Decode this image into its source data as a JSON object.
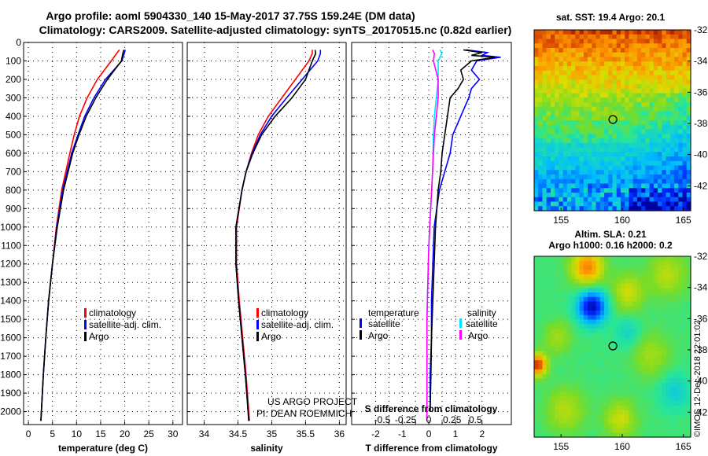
{
  "header": {
    "title_line1": "Argo profile: aoml 5904330_140 15-May-2017 37.75S 159.24E (DM data)",
    "title_line2": "Climatology: CARS2009. Satellite-adjusted climatology: synTS_20170515.nc (0.82d earlier)"
  },
  "colors": {
    "climatology": "#ff0000",
    "satellite": "#0000ff",
    "argo": "#000000",
    "satellite_s": "#00e5ff",
    "argo_s": "#ff00ff"
  },
  "depth_ticks": [
    "0",
    "100",
    "200",
    "300",
    "400",
    "500",
    "600",
    "700",
    "800",
    "900",
    "1000",
    "1100",
    "1200",
    "1300",
    "1400",
    "1500",
    "1600",
    "1700",
    "1800",
    "1900",
    "2000"
  ],
  "chart_data": [
    {
      "type": "line",
      "xlabel": "temperature (deg C)",
      "x_ticks": [
        "0",
        "5",
        "10",
        "15",
        "20",
        "25",
        "30"
      ],
      "xlim": [
        -1,
        32
      ],
      "ylim": [
        2070,
        0
      ],
      "legend": [
        "climatology",
        "satellite-adj. clim.",
        "Argo"
      ],
      "series": [
        {
          "name": "climatology",
          "depth": [
            40,
            60,
            100,
            200,
            300,
            400,
            500,
            600,
            800,
            1000,
            1200,
            1400,
            1600,
            1800,
            2000,
            2050
          ],
          "values": [
            18.9,
            18.3,
            17.2,
            14.3,
            12.2,
            10.6,
            9.5,
            8.6,
            6.9,
            5.8,
            5.0,
            4.2,
            3.6,
            3.1,
            2.7,
            2.6
          ]
        },
        {
          "name": "satellite-adj. clim.",
          "depth": [
            40,
            60,
            100,
            200,
            300,
            400,
            500,
            600,
            800,
            1000,
            1200,
            1400,
            1600,
            1800,
            2000,
            2050
          ],
          "values": [
            20.1,
            19.9,
            19.4,
            16.0,
            13.6,
            11.7,
            10.3,
            9.0,
            7.1,
            5.9,
            5.0,
            4.2,
            3.6,
            3.1,
            2.7,
            2.6
          ]
        },
        {
          "name": "Argo",
          "depth": [
            40,
            60,
            100,
            200,
            300,
            400,
            500,
            600,
            800,
            1000,
            1200,
            1400,
            1600,
            1800,
            2000,
            2050
          ],
          "values": [
            19.8,
            19.6,
            19.3,
            16.4,
            14.0,
            12.0,
            10.5,
            9.2,
            7.3,
            6.0,
            5.0,
            4.2,
            3.6,
            3.1,
            2.7,
            2.6
          ]
        }
      ]
    },
    {
      "type": "line",
      "xlabel": "salinity",
      "x_ticks": [
        "34",
        "34.5",
        "35",
        "35.5",
        "36"
      ],
      "xlim": [
        33.75,
        36.1
      ],
      "ylim": [
        2070,
        0
      ],
      "legend": [
        "climatology",
        "satellite-adj. clim.",
        "Argo"
      ],
      "series": [
        {
          "name": "climatology",
          "depth": [
            40,
            60,
            100,
            200,
            300,
            400,
            500,
            600,
            700,
            800,
            1000,
            1200,
            1400,
            1600,
            1800,
            2000,
            2050
          ],
          "values": [
            35.6,
            35.6,
            35.55,
            35.35,
            35.15,
            34.95,
            34.8,
            34.7,
            34.62,
            34.56,
            34.48,
            34.48,
            34.52,
            34.57,
            34.62,
            34.66,
            34.67
          ]
        },
        {
          "name": "satellite-adj. clim.",
          "depth": [
            40,
            60,
            100,
            200,
            300,
            400,
            500,
            600,
            700,
            800,
            1000,
            1200,
            1400,
            1600,
            1800,
            2000,
            2050
          ],
          "values": [
            35.72,
            35.72,
            35.68,
            35.45,
            35.22,
            35.0,
            34.83,
            34.71,
            34.62,
            34.56,
            34.47,
            34.47,
            34.51,
            34.56,
            34.61,
            34.65,
            34.66
          ]
        },
        {
          "name": "Argo",
          "depth": [
            40,
            60,
            100,
            200,
            300,
            400,
            500,
            600,
            700,
            800,
            1000,
            1200,
            1400,
            1600,
            1800,
            2000,
            2050
          ],
          "values": [
            35.64,
            35.65,
            35.6,
            35.5,
            35.3,
            35.05,
            34.85,
            34.72,
            34.62,
            34.56,
            34.47,
            34.47,
            34.51,
            34.56,
            34.61,
            34.65,
            34.66
          ]
        }
      ]
    },
    {
      "type": "line",
      "xlabel": "T difference from climatology",
      "x2label": "S difference from climatology",
      "x_ticks": [
        "-2",
        "-1.5",
        "-1",
        "-0.5",
        "0",
        "0.5",
        "1",
        "1.5",
        "2"
      ],
      "x_tick_labels": [
        "-2",
        "",
        "-1",
        "",
        "0",
        "",
        "1",
        "",
        "2"
      ],
      "s_ticks": [
        "-0.5",
        "-0.25",
        "0",
        "0.25",
        "0.5"
      ],
      "xlim": [
        -2.9,
        3.1
      ],
      "ylim": [
        2070,
        0
      ],
      "legend_left": [
        "temperature",
        "satellite",
        "Argo"
      ],
      "legend_right": [
        "salinity",
        "satellite",
        "Argo"
      ],
      "series": [
        {
          "name": "T satellite",
          "depth": [
            40,
            55,
            70,
            80,
            100,
            150,
            200,
            250,
            300,
            400,
            500,
            600,
            700,
            800,
            1000,
            1200,
            1400,
            1600,
            1800,
            2000
          ],
          "values": [
            1.4,
            2.2,
            2.0,
            2.7,
            1.8,
            1.6,
            1.9,
            1.6,
            1.5,
            1.2,
            0.9,
            0.8,
            0.6,
            0.4,
            0.2,
            0.15,
            0.1,
            0.1,
            0.05,
            0.05
          ]
        },
        {
          "name": "T Argo",
          "depth": [
            40,
            55,
            70,
            80,
            100,
            150,
            200,
            250,
            300,
            400,
            500,
            600,
            700,
            800,
            1000,
            1200,
            1400,
            1600,
            1800,
            2000
          ],
          "values": [
            1.3,
            2.0,
            1.6,
            2.5,
            1.6,
            1.2,
            1.3,
            1.1,
            0.8,
            0.7,
            0.6,
            0.5,
            0.45,
            0.35,
            0.25,
            0.2,
            0.15,
            0.1,
            0.08,
            0.05
          ]
        },
        {
          "name": "S satellite",
          "depth": [
            40,
            60,
            100,
            200,
            300,
            400,
            500,
            700,
            900,
            1100,
            1300,
            1500,
            1700,
            1900,
            2050
          ],
          "values": [
            0.12,
            0.14,
            0.1,
            0.1,
            0.08,
            0.06,
            0.05,
            0.04,
            0.02,
            0.0,
            -0.01,
            -0.02,
            -0.02,
            -0.02,
            -0.02
          ]
        },
        {
          "name": "S Argo",
          "depth": [
            40,
            60,
            100,
            200,
            300,
            400,
            500,
            700,
            900,
            1100,
            1300,
            1500,
            1700,
            1900,
            2050
          ],
          "values": [
            0.04,
            0.06,
            0.05,
            0.1,
            0.1,
            0.08,
            0.06,
            0.04,
            0.02,
            0.0,
            -0.01,
            -0.02,
            -0.02,
            -0.02,
            -0.02
          ]
        }
      ]
    },
    {
      "type": "heatmap",
      "title": "sat. SST: 19.4 Argo: 20.1",
      "x_ticks": [
        "155",
        "160",
        "165"
      ],
      "y_ticks": [
        "-32",
        "-34",
        "-36",
        "-38",
        "-40",
        "-42"
      ],
      "xlim": [
        152.8,
        165.6
      ],
      "ylim": [
        -43.6,
        -32
      ],
      "marker": {
        "lon": 159.24,
        "lat": -37.75
      }
    },
    {
      "type": "heatmap",
      "title": "Altim. SLA: 0.21",
      "subtitle": "Argo h1000: 0.16 h2000: 0.2",
      "x_ticks": [
        "155",
        "160",
        "165"
      ],
      "y_ticks": [
        "-32",
        "-34",
        "-36",
        "-38",
        "-40",
        "-42"
      ],
      "xlim": [
        152.8,
        165.6
      ],
      "ylim": [
        -43.6,
        -32
      ],
      "marker": {
        "lon": 159.24,
        "lat": -37.75
      }
    }
  ],
  "credits": {
    "project": "US ARGO PROJECT",
    "pi": "PI: DEAN ROEMMICH",
    "stamp": "©IMOS 12-Dec-2018 22:01:02"
  }
}
